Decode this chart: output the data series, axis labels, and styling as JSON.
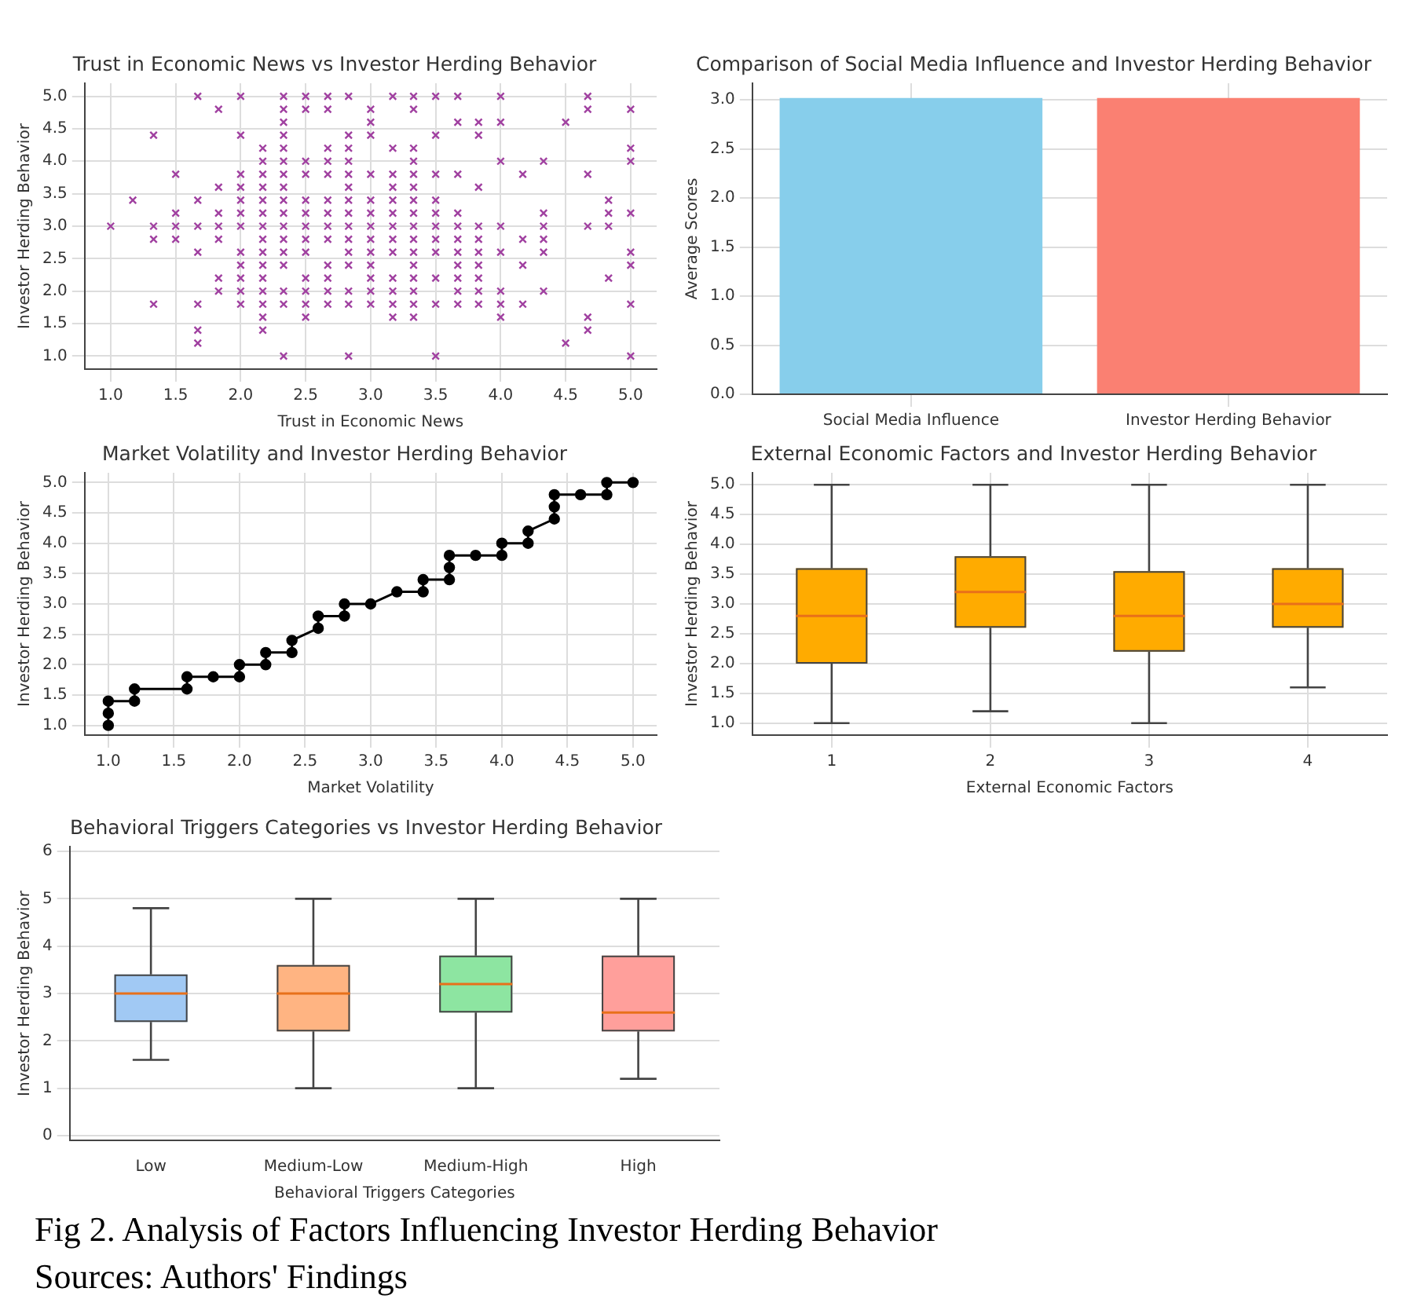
{
  "chart_data": [
    {
      "type": "scatter",
      "title": "Trust in Economic News vs Investor Herding Behavior",
      "xlabel": "Trust in Economic News",
      "ylabel": "Investor Herding Behavior",
      "color": "#a040a0",
      "marker": "cross",
      "grid": true,
      "xlim": [
        0.8,
        5.2
      ],
      "ylim": [
        0.8,
        5.2
      ],
      "xticks": [
        {
          "value": 1,
          "label": "1.0"
        },
        {
          "value": 1.5,
          "label": "1.5"
        },
        {
          "value": 2,
          "label": "2.0"
        },
        {
          "value": 2.5,
          "label": "2.5"
        },
        {
          "value": 3,
          "label": "3.0"
        },
        {
          "value": 3.5,
          "label": "3.5"
        },
        {
          "value": 4,
          "label": "4.0"
        },
        {
          "value": 4.5,
          "label": "4.5"
        },
        {
          "value": 5,
          "label": "5.0"
        }
      ],
      "yticks": [
        {
          "value": 1,
          "label": "1.0"
        },
        {
          "value": 1.5,
          "label": "1.5"
        },
        {
          "value": 2,
          "label": "2.0"
        },
        {
          "value": 2.5,
          "label": "2.5"
        },
        {
          "value": 3,
          "label": "3.0"
        },
        {
          "value": 3.5,
          "label": "3.5"
        },
        {
          "value": 4,
          "label": "4.0"
        },
        {
          "value": 4.5,
          "label": "4.5"
        },
        {
          "value": 5,
          "label": "5.0"
        }
      ],
      "x": [
        1.0,
        1.17,
        1.33,
        1.33,
        1.33,
        1.33,
        1.5,
        1.5,
        1.5,
        1.5,
        1.67,
        1.67,
        1.67,
        1.67,
        1.67,
        1.67,
        1.67,
        1.83,
        1.83,
        1.83,
        1.83,
        1.83,
        1.83,
        1.83,
        2.0,
        2.0,
        2.0,
        2.0,
        2.0,
        2.0,
        2.0,
        2.0,
        2.0,
        2.0,
        2.0,
        2.0,
        2.17,
        2.17,
        2.17,
        2.17,
        2.17,
        2.17,
        2.17,
        2.17,
        2.17,
        2.17,
        2.17,
        2.17,
        2.17,
        2.17,
        2.17,
        2.33,
        2.33,
        2.33,
        2.33,
        2.33,
        2.33,
        2.33,
        2.33,
        2.33,
        2.33,
        2.33,
        2.33,
        2.33,
        2.33,
        2.33,
        2.33,
        2.33,
        2.5,
        2.5,
        2.5,
        2.5,
        2.5,
        2.5,
        2.5,
        2.5,
        2.5,
        2.5,
        2.5,
        2.5,
        2.5,
        2.67,
        2.67,
        2.67,
        2.67,
        2.67,
        2.67,
        2.67,
        2.67,
        2.67,
        2.67,
        2.67,
        2.67,
        2.67,
        2.83,
        2.83,
        2.83,
        2.83,
        2.83,
        2.83,
        2.83,
        2.83,
        2.83,
        2.83,
        2.83,
        2.83,
        2.83,
        2.83,
        2.83,
        3.0,
        3.0,
        3.0,
        3.0,
        3.0,
        3.0,
        3.0,
        3.0,
        3.0,
        3.0,
        3.0,
        3.0,
        3.0,
        3.17,
        3.17,
        3.17,
        3.17,
        3.17,
        3.17,
        3.17,
        3.17,
        3.17,
        3.17,
        3.17,
        3.17,
        3.17,
        3.33,
        3.33,
        3.33,
        3.33,
        3.33,
        3.33,
        3.33,
        3.33,
        3.33,
        3.33,
        3.33,
        3.33,
        3.33,
        3.33,
        3.33,
        3.33,
        3.5,
        3.5,
        3.5,
        3.5,
        3.5,
        3.5,
        3.5,
        3.5,
        3.5,
        3.5,
        3.5,
        3.67,
        3.67,
        3.67,
        3.67,
        3.67,
        3.67,
        3.67,
        3.67,
        3.67,
        3.67,
        3.67,
        3.83,
        3.83,
        3.83,
        3.83,
        3.83,
        3.83,
        3.83,
        3.83,
        3.83,
        3.83,
        4.0,
        4.0,
        4.0,
        4.0,
        4.0,
        4.0,
        4.0,
        4.0,
        4.17,
        4.17,
        4.17,
        4.17,
        4.33,
        4.33,
        4.33,
        4.33,
        4.33,
        4.33,
        4.5,
        4.5,
        4.67,
        4.67,
        4.67,
        4.67,
        4.67,
        4.67,
        4.83,
        4.83,
        4.83,
        4.83,
        5.0,
        5.0,
        5.0,
        5.0,
        5.0,
        5.0,
        5.0,
        5.0
      ],
      "values": [
        3.0,
        3.4,
        4.4,
        3.0,
        2.8,
        1.8,
        3.8,
        3.2,
        3.0,
        2.8,
        5.0,
        3.4,
        3.0,
        2.6,
        1.8,
        1.4,
        1.2,
        4.8,
        3.6,
        3.2,
        3.0,
        2.8,
        2.2,
        2.0,
        5.0,
        4.4,
        3.8,
        3.6,
        3.4,
        3.2,
        3.0,
        2.6,
        2.4,
        2.2,
        2.0,
        1.8,
        4.2,
        4.0,
        3.8,
        3.6,
        3.4,
        3.2,
        3.0,
        2.8,
        2.6,
        2.4,
        2.2,
        2.0,
        1.8,
        1.6,
        1.4,
        5.0,
        4.8,
        4.6,
        4.4,
        4.2,
        4.0,
        3.8,
        3.6,
        3.4,
        3.2,
        3.0,
        2.8,
        2.6,
        2.4,
        2.0,
        1.8,
        1.0,
        5.0,
        4.8,
        4.0,
        3.8,
        3.4,
        3.2,
        3.0,
        2.8,
        2.6,
        2.2,
        2.0,
        1.8,
        1.6,
        5.0,
        4.8,
        4.2,
        4.0,
        3.8,
        3.4,
        3.2,
        3.0,
        2.8,
        2.4,
        2.2,
        2.0,
        1.8,
        5.0,
        4.4,
        4.2,
        4.0,
        3.8,
        3.6,
        3.4,
        3.2,
        3.0,
        2.8,
        2.6,
        2.4,
        2.0,
        1.8,
        1.0,
        4.8,
        4.6,
        4.4,
        3.8,
        3.4,
        3.2,
        3.0,
        2.8,
        2.6,
        2.4,
        2.2,
        2.0,
        1.8,
        5.0,
        4.2,
        3.8,
        3.6,
        3.4,
        3.2,
        3.0,
        2.8,
        2.6,
        2.2,
        2.0,
        1.8,
        1.6,
        5.0,
        4.8,
        4.2,
        4.0,
        3.8,
        3.6,
        3.4,
        3.2,
        3.0,
        2.8,
        2.6,
        2.4,
        2.2,
        2.0,
        1.8,
        1.6,
        5.0,
        4.4,
        3.8,
        3.4,
        3.2,
        3.0,
        2.8,
        2.6,
        2.2,
        1.8,
        1.0,
        5.0,
        4.6,
        3.8,
        3.2,
        3.0,
        2.8,
        2.6,
        2.4,
        2.2,
        2.0,
        1.8,
        4.6,
        4.4,
        3.6,
        3.0,
        2.8,
        2.6,
        2.4,
        2.2,
        2.0,
        1.8,
        5.0,
        4.6,
        4.0,
        3.0,
        2.6,
        2.0,
        1.8,
        1.6,
        3.8,
        2.8,
        2.4,
        1.8,
        4.0,
        3.2,
        3.0,
        2.8,
        2.6,
        2.0,
        4.6,
        1.2,
        5.0,
        4.8,
        3.8,
        3.0,
        1.6,
        1.4,
        3.4,
        3.2,
        3.0,
        2.2,
        4.8,
        4.2,
        4.0,
        3.2,
        2.6,
        2.4,
        1.8,
        1.0
      ]
    },
    {
      "type": "bar",
      "title": "Comparison of Social Media Influence and Investor Herding Behavior",
      "ylabel": "Average Scores",
      "categories": [
        "Social Media Influence",
        "Investor Herding Behavior"
      ],
      "values": [
        3.02,
        3.02
      ],
      "colors": [
        "#87ceeb",
        "#fa8072"
      ],
      "grid": true,
      "ylim": [
        0,
        3.17
      ],
      "yticks": [
        {
          "value": 0,
          "label": "0.0"
        },
        {
          "value": 0.5,
          "label": "0.5"
        },
        {
          "value": 1,
          "label": "1.0"
        },
        {
          "value": 1.5,
          "label": "1.5"
        },
        {
          "value": 2,
          "label": "2.0"
        },
        {
          "value": 2.5,
          "label": "2.5"
        },
        {
          "value": 3,
          "label": "3.0"
        }
      ]
    },
    {
      "type": "line",
      "title": "Market Volatility and Investor Herding Behavior",
      "xlabel": "Market Volatility",
      "ylabel": "Investor Herding Behavior",
      "grid": true,
      "xlim": [
        0.82,
        5.18
      ],
      "ylim": [
        0.84,
        5.16
      ],
      "xticks": [
        {
          "value": 1,
          "label": "1.0"
        },
        {
          "value": 1.5,
          "label": "1.5"
        },
        {
          "value": 2,
          "label": "2.0"
        },
        {
          "value": 2.5,
          "label": "2.5"
        },
        {
          "value": 3,
          "label": "3.0"
        },
        {
          "value": 3.5,
          "label": "3.5"
        },
        {
          "value": 4,
          "label": "4.0"
        },
        {
          "value": 4.5,
          "label": "4.5"
        },
        {
          "value": 5,
          "label": "5.0"
        }
      ],
      "yticks": [
        {
          "value": 1,
          "label": "1.0"
        },
        {
          "value": 1.5,
          "label": "1.5"
        },
        {
          "value": 2,
          "label": "2.0"
        },
        {
          "value": 2.5,
          "label": "2.5"
        },
        {
          "value": 3,
          "label": "3.0"
        },
        {
          "value": 3.5,
          "label": "3.5"
        },
        {
          "value": 4,
          "label": "4.0"
        },
        {
          "value": 4.5,
          "label": "4.5"
        },
        {
          "value": 5,
          "label": "5.0"
        }
      ],
      "series": [
        {
          "type": "line",
          "color": "#000000",
          "marker": "none",
          "line_style": "solid",
          "x": [
            1.0,
            1.0,
            1.2,
            1.2,
            1.6,
            1.6,
            1.8,
            2.0,
            2.0,
            2.2,
            2.2,
            2.4,
            2.4,
            2.6,
            2.6,
            2.8,
            2.8,
            3.0,
            3.2,
            3.4,
            3.4,
            3.6,
            3.6,
            3.8,
            4.0,
            4.0,
            4.2,
            4.2,
            4.4,
            4.4,
            4.6,
            4.8,
            4.8,
            5.0
          ],
          "values": [
            1.0,
            1.4,
            1.4,
            1.6,
            1.6,
            1.8,
            1.8,
            1.8,
            2.0,
            2.0,
            2.2,
            2.2,
            2.4,
            2.6,
            2.8,
            2.8,
            3.0,
            3.0,
            3.2,
            3.2,
            3.4,
            3.4,
            3.8,
            3.8,
            3.8,
            4.0,
            4.0,
            4.2,
            4.4,
            4.8,
            4.8,
            4.8,
            5.0,
            5.0
          ]
        },
        {
          "type": "scatter",
          "color": "#000000",
          "marker": "circle",
          "x": [
            1.0,
            1.0,
            1.0,
            1.2,
            1.2,
            1.6,
            1.6,
            1.8,
            2.0,
            2.0,
            2.2,
            2.2,
            2.4,
            2.4,
            2.6,
            2.6,
            2.8,
            2.8,
            3.0,
            3.2,
            3.4,
            3.4,
            3.6,
            3.6,
            3.6,
            3.8,
            4.0,
            4.0,
            4.2,
            4.2,
            4.4,
            4.4,
            4.4,
            4.6,
            4.8,
            4.8,
            5.0
          ],
          "values": [
            1.0,
            1.2,
            1.4,
            1.4,
            1.6,
            1.6,
            1.8,
            1.8,
            1.8,
            2.0,
            2.0,
            2.2,
            2.2,
            2.4,
            2.6,
            2.8,
            2.8,
            3.0,
            3.0,
            3.2,
            3.2,
            3.4,
            3.4,
            3.6,
            3.8,
            3.8,
            3.8,
            4.0,
            4.0,
            4.2,
            4.4,
            4.6,
            4.8,
            4.8,
            4.8,
            5.0,
            5.0
          ]
        }
      ]
    },
    {
      "type": "box",
      "title": "External Economic Factors and Investor Herding Behavior",
      "xlabel": "External Economic Factors",
      "ylabel": "Investor Herding Behavior",
      "categories": [
        "1",
        "2",
        "3",
        "4"
      ],
      "color": "#ffab00",
      "grid": true,
      "ylim": [
        0.8,
        5.2
      ],
      "yticks": [
        {
          "value": 1,
          "label": "1.0"
        },
        {
          "value": 1.5,
          "label": "1.5"
        },
        {
          "value": 2,
          "label": "2.0"
        },
        {
          "value": 2.5,
          "label": "2.5"
        },
        {
          "value": 3,
          "label": "3.0"
        },
        {
          "value": 3.5,
          "label": "3.5"
        },
        {
          "value": 4,
          "label": "4.0"
        },
        {
          "value": 4.5,
          "label": "4.5"
        },
        {
          "value": 5,
          "label": "5.0"
        }
      ],
      "boxes": [
        {
          "low": 1.0,
          "q1": 2.0,
          "median": 2.8,
          "q3": 3.6,
          "high": 5.0
        },
        {
          "low": 1.2,
          "q1": 2.6,
          "median": 3.2,
          "q3": 3.8,
          "high": 5.0
        },
        {
          "low": 1.0,
          "q1": 2.2,
          "median": 2.8,
          "q3": 3.55,
          "high": 5.0
        },
        {
          "low": 1.6,
          "q1": 2.6,
          "median": 3.0,
          "q3": 3.6,
          "high": 5.0
        }
      ]
    },
    {
      "type": "box",
      "title": "Behavioral Triggers Categories vs Investor Herding Behavior",
      "xlabel": "Behavioral Triggers Categories",
      "ylabel": "Investor Herding Behavior",
      "categories": [
        "Low",
        "Medium-Low",
        "Medium-High",
        "High"
      ],
      "colors": [
        "#a1c9f4",
        "#ffb482",
        "#8de5a1",
        "#ff9f9b"
      ],
      "grid": "y",
      "ylim": [
        -0.1,
        6.1
      ],
      "yticks": [
        0,
        1,
        2,
        3,
        4,
        5,
        6
      ],
      "boxes": [
        {
          "low": 1.6,
          "q1": 2.4,
          "median": 3.0,
          "q3": 3.4,
          "high": 4.8
        },
        {
          "low": 1.0,
          "q1": 2.2,
          "median": 3.0,
          "q3": 3.6,
          "high": 5.0
        },
        {
          "low": 1.0,
          "q1": 2.6,
          "median": 3.2,
          "q3": 3.8,
          "high": 5.0
        },
        {
          "low": 1.2,
          "q1": 2.2,
          "median": 2.6,
          "q3": 3.8,
          "high": 5.0
        }
      ],
      "annotations": [
        "Fig 2. Analysis of Factors Influencing Investor Herding Behavior",
        "Sources: Authors' Findings"
      ]
    }
  ]
}
